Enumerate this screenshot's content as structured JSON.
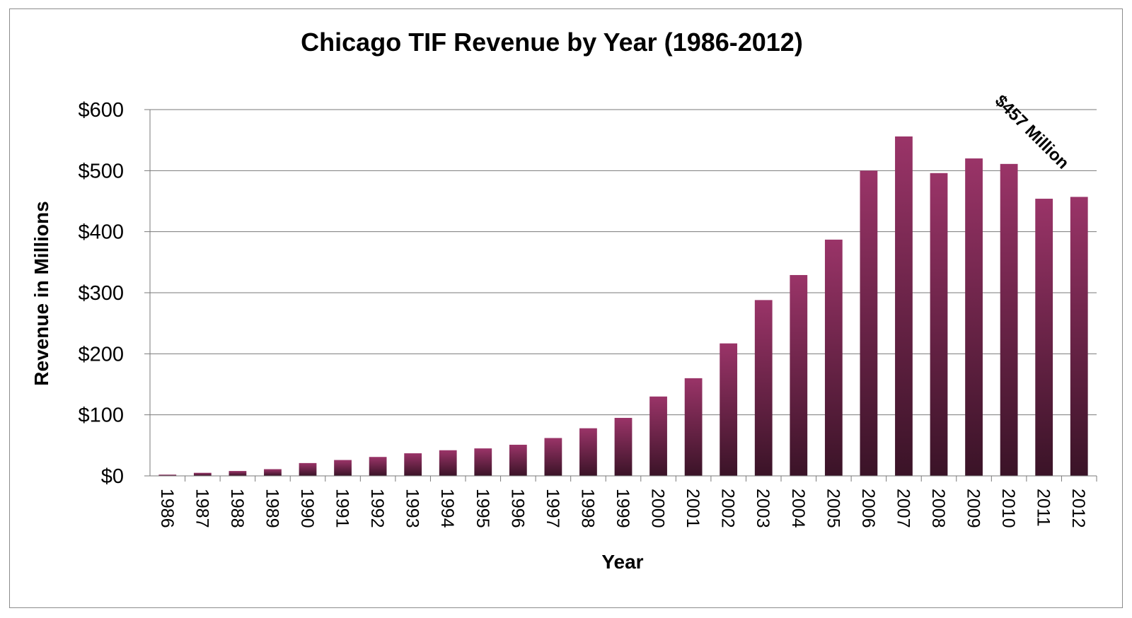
{
  "chart_data": {
    "type": "bar",
    "title": "Chicago TIF Revenue by Year (1986-2012)",
    "xlabel": "Year",
    "ylabel": "Revenue in Millions",
    "ylim": [
      0,
      600
    ],
    "yticks": [
      "$0",
      "$100",
      "$200",
      "$300",
      "$400",
      "$500",
      "$600"
    ],
    "grid": true,
    "categories": [
      "1986",
      "1987",
      "1988",
      "1989",
      "1990",
      "1991",
      "1992",
      "1993",
      "1994",
      "1995",
      "1996",
      "1997",
      "1998",
      "1999",
      "2000",
      "2001",
      "2002",
      "2003",
      "2004",
      "2005",
      "2006",
      "2007",
      "2008",
      "2009",
      "2010",
      "2011",
      "2012"
    ],
    "values": [
      2,
      5,
      8,
      11,
      21,
      26,
      31,
      37,
      42,
      45,
      51,
      62,
      78,
      95,
      130,
      160,
      217,
      288,
      329,
      387,
      500,
      556,
      496,
      520,
      511,
      454,
      457
    ],
    "annotation": "$457 Million",
    "colors": {
      "bar_top": "#9a3468",
      "bar_bottom": "#3a1327",
      "grid": "#7a7a7a",
      "axis": "#7a7a7a"
    }
  }
}
